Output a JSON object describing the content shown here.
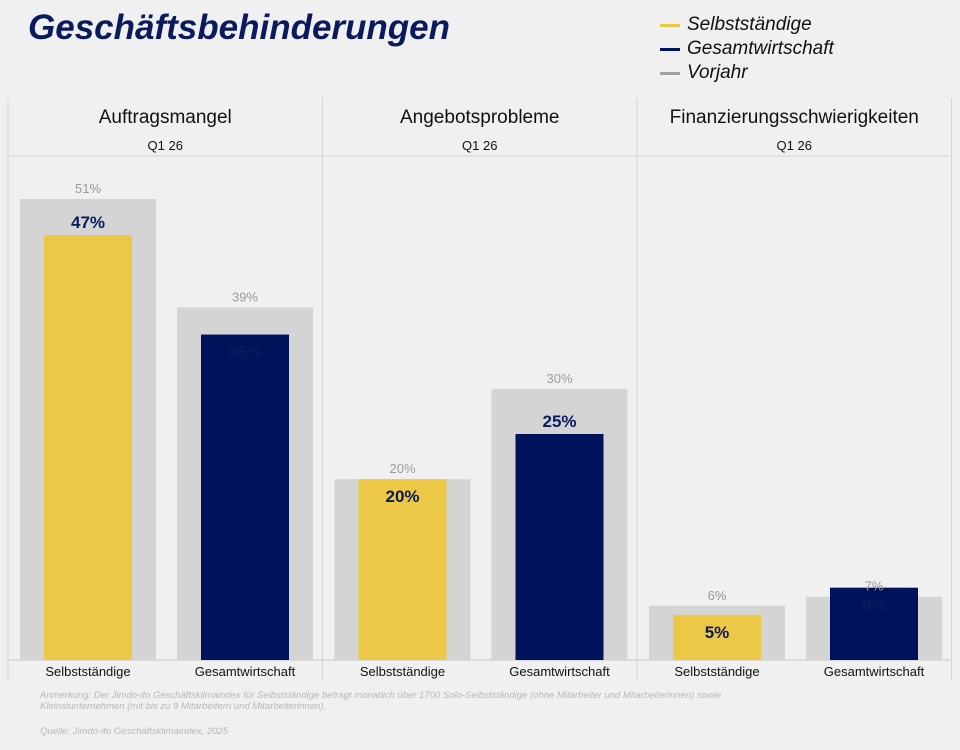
{
  "chart_data": {
    "type": "bar",
    "title": "Geschäftsbehinderungen",
    "period": "Q1 26",
    "ylim": [
      0,
      55
    ],
    "grid": false,
    "legend_placement": "top-right",
    "legend": [
      {
        "name": "Selbstständige",
        "color": "#ecc847"
      },
      {
        "name": "Gesamtwirtschaft",
        "color": "#00125a"
      },
      {
        "name": "Vorjahr",
        "color": "#a0a0a0"
      }
    ],
    "panels": [
      {
        "title": "Auftragsmangel",
        "categories": [
          "Selbstständige",
          "Gesamtwirtschaft"
        ],
        "values": [
          47,
          36
        ],
        "previous": [
          51,
          39
        ]
      },
      {
        "title": "Angebotsprobleme",
        "categories": [
          "Selbstständige",
          "Gesamtwirtschaft"
        ],
        "values": [
          20,
          25
        ],
        "previous": [
          20,
          30
        ]
      },
      {
        "title": "Finanzierungsschwierigkeiten",
        "categories": [
          "Selbstständige",
          "Gesamtwirtschaft"
        ],
        "values": [
          5,
          8
        ],
        "previous": [
          6,
          7
        ]
      }
    ],
    "unit": "%"
  },
  "footer": {
    "note": "Anmerkung: Der Jimdo-ifo Geschäftsklimaindex für Selbstständige befragt monatlich über 1700 Solo-Selbstständige (ohne Mitarbeiter und Mitarbeiterinnen) sowie Kleinstunternehmen (mit bis zu 9 Mitarbeitern und Mitarbeiterinnen).",
    "source": "Quelle: Jimdo-ifo Geschäftsklimaindex, 2025"
  }
}
